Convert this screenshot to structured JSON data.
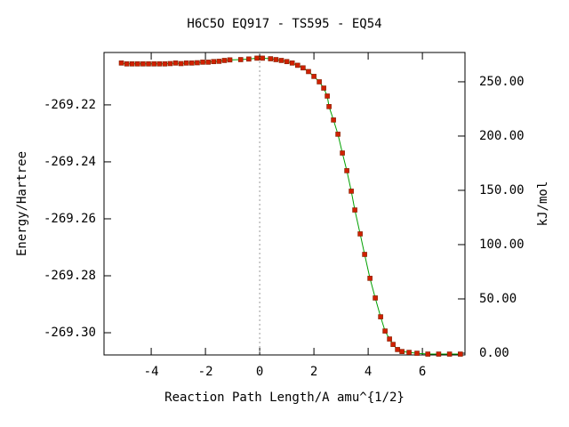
{
  "chart_data": {
    "type": "line",
    "title": "H6C5O   EQ917 - TS595 - EQ54",
    "x_label": "Reaction Path Length/A amu^{1/2}",
    "y_label": "Energy/Hartree",
    "y2_label": "kJ/mol",
    "xlim": [
      -5.74,
      7.57
    ],
    "ylim": [
      -269.3078,
      -269.2016
    ],
    "y2lim": [
      -1.64,
      277.0
    ],
    "xticks": [
      -4,
      -2,
      0,
      2,
      4,
      6
    ],
    "yticks": [
      {
        "value": -269.3,
        "label": "-269.30"
      },
      -269.28,
      -269.26,
      -269.24,
      -269.22
    ],
    "y2ticks": [
      {
        "value": 0,
        "label": "0.00"
      },
      {
        "value": 50,
        "label": "50.00"
      },
      {
        "value": 100,
        "label": "100.00"
      },
      {
        "value": 150,
        "label": "150.00"
      },
      {
        "value": 200,
        "label": "200.00"
      },
      {
        "value": 250,
        "label": "250.00"
      }
    ],
    "xzeroaxis": true,
    "series": [
      {
        "line_color": "#00a000",
        "marker_color": "#d02000",
        "x": [
          -5.1,
          -4.9,
          -4.7,
          -4.5,
          -4.3,
          -4.1,
          -3.9,
          -3.7,
          -3.5,
          -3.3,
          -3.1,
          -2.9,
          -2.7,
          -2.5,
          -2.3,
          -2.1,
          -1.9,
          -1.7,
          -1.5,
          -1.3,
          -1.1,
          -0.7,
          -0.4,
          -0.1,
          0.1,
          0.4,
          0.6,
          0.8,
          1.0,
          1.2,
          1.4,
          1.6,
          1.8,
          2.0,
          2.197,
          2.361,
          2.492,
          2.557,
          2.721,
          2.885,
          3.049,
          3.213,
          3.377,
          3.508,
          3.705,
          3.869,
          4.066,
          4.262,
          4.459,
          4.623,
          4.787,
          4.918,
          5.082,
          5.246,
          5.508,
          5.8,
          6.2,
          6.6,
          7.0,
          7.4
        ],
        "values": [
          -269.2053,
          -269.2056,
          -269.2056,
          -269.2056,
          -269.2056,
          -269.2056,
          -269.2056,
          -269.2056,
          -269.2056,
          -269.2055,
          -269.2053,
          -269.2055,
          -269.2053,
          -269.2053,
          -269.2052,
          -269.205,
          -269.205,
          -269.2048,
          -269.2047,
          -269.2044,
          -269.2042,
          -269.2041,
          -269.2039,
          -269.2036,
          -269.2036,
          -269.2038,
          -269.2041,
          -269.2044,
          -269.2048,
          -269.2053,
          -269.2061,
          -269.207,
          -269.2083,
          -269.21,
          -269.2119,
          -269.2141,
          -269.2169,
          -269.2206,
          -269.2253,
          -269.2303,
          -269.2369,
          -269.2431,
          -269.2503,
          -269.2569,
          -269.2653,
          -269.2725,
          -269.2809,
          -269.2878,
          -269.2944,
          -269.2994,
          -269.3022,
          -269.3041,
          -269.3059,
          -269.3066,
          -269.3069,
          -269.3072,
          -269.3075,
          -269.3075,
          -269.3075,
          -269.3075
        ]
      }
    ]
  }
}
